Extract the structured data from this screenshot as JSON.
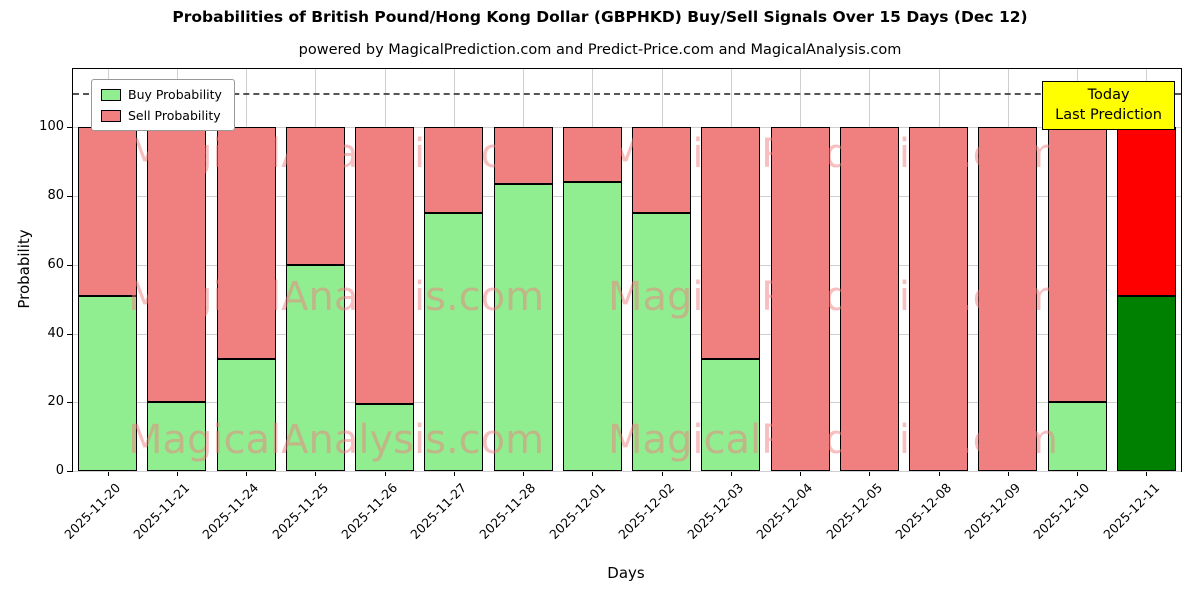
{
  "title": "Probabilities of British Pound/Hong Kong Dollar (GBPHKD) Buy/Sell Signals Over 15 Days (Dec 12)",
  "subtitle": "powered by MagicalPrediction.com and Predict-Price.com and MagicalAnalysis.com",
  "legend": {
    "buy": "Buy Probability",
    "sell": "Sell Probability"
  },
  "today_box": {
    "line1": "Today",
    "line2": "Last Prediction"
  },
  "axes": {
    "ylabel": "Probability",
    "xlabel": "Days",
    "yticks": [
      0,
      20,
      40,
      60,
      80,
      100
    ],
    "ymax": 117,
    "dashed_line_y": 110
  },
  "colors": {
    "buy": "#90ee90",
    "sell": "#f08080",
    "buy_today": "#008000",
    "sell_today": "#ff0000",
    "grid": "#cfcfcf",
    "watermark": "#f08080",
    "today_box_bg": "#ffff00"
  },
  "watermarks": {
    "left": "MagicalAnalysis.com",
    "right": "MagicalPrediction.com"
  },
  "chart_data": {
    "type": "bar",
    "stacked": true,
    "title": "Probabilities of British Pound/Hong Kong Dollar (GBPHKD) Buy/Sell Signals Over 15 Days (Dec 12)",
    "xlabel": "Days",
    "ylabel": "Probability",
    "ylim": [
      0,
      117
    ],
    "grid": true,
    "legend_position": "upper left",
    "categories": [
      "2025-11-20",
      "2025-11-21",
      "2025-11-24",
      "2025-11-25",
      "2025-11-26",
      "2025-11-27",
      "2025-11-28",
      "2025-12-01",
      "2025-12-02",
      "2025-12-03",
      "2025-12-04",
      "2025-12-05",
      "2025-12-08",
      "2025-12-09",
      "2025-12-10",
      "2025-12-11"
    ],
    "series": [
      {
        "name": "Buy Probability",
        "color": "#90ee90",
        "today_color": "#008000",
        "values": [
          51,
          20,
          32.5,
          60,
          19.5,
          75,
          83.5,
          84,
          75,
          32.5,
          0,
          0,
          0,
          0,
          20,
          51
        ]
      },
      {
        "name": "Sell Probability",
        "color": "#f08080",
        "today_color": "#ff0000",
        "values": [
          49,
          80,
          67.5,
          40,
          80.5,
          25,
          16.5,
          16,
          25,
          67.5,
          100,
          100,
          100,
          100,
          80,
          49
        ]
      }
    ],
    "today_index": 15,
    "annotation": "Today Last Prediction",
    "dashed_threshold": 110
  }
}
